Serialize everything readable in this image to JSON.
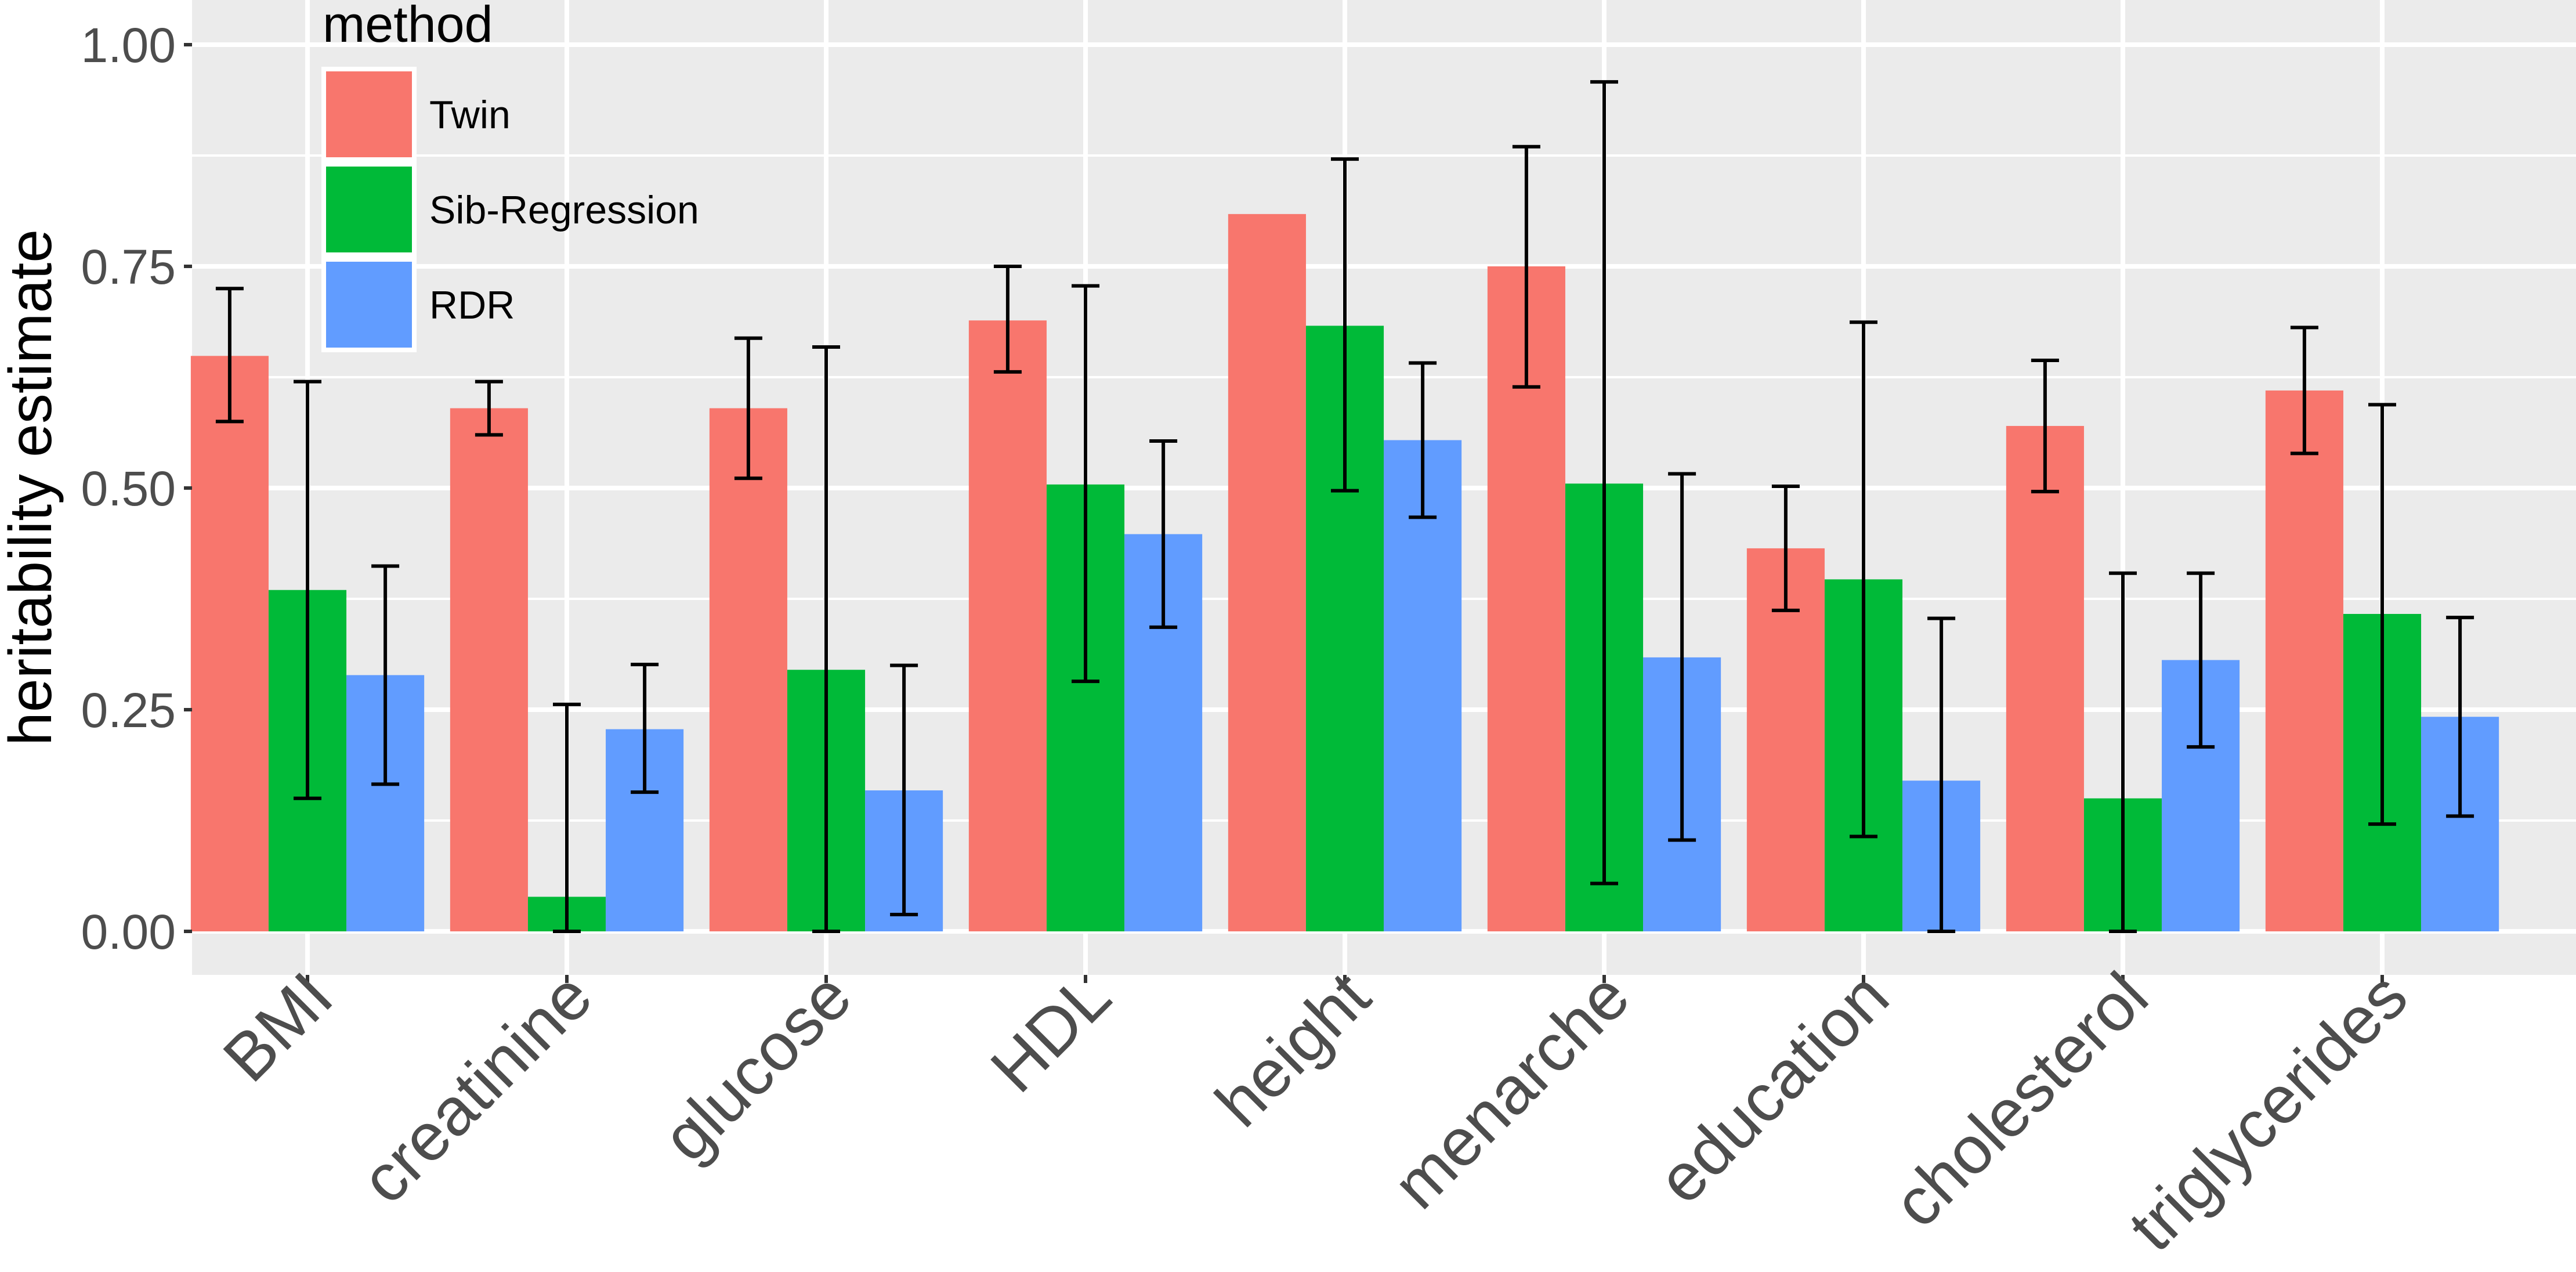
{
  "chart_data": {
    "type": "bar",
    "title": "",
    "xlabel": "",
    "ylabel": "heritability estimate",
    "ylim": [
      -0.05,
      1.04
    ],
    "yticks": [
      "0.00",
      "0.25",
      "0.50",
      "0.75",
      "1.00"
    ],
    "grid": true,
    "legend": {
      "title": "method",
      "placement": "top-left inside"
    },
    "categories": [
      "BMI",
      "creatinine",
      "glucose",
      "HDL",
      "height",
      "menarche",
      "education",
      "cholesterol",
      "triglycerides"
    ],
    "series": [
      {
        "name": "Twin",
        "color": "#F8766D",
        "values": [
          0.649,
          0.59,
          0.59,
          0.689,
          0.809,
          0.75,
          0.432,
          0.57,
          0.61
        ],
        "err_low": [
          0.575,
          0.56,
          0.511,
          0.631,
          null,
          0.614,
          0.362,
          0.496,
          0.539
        ],
        "err_high": [
          0.725,
          0.62,
          0.669,
          0.75,
          null,
          0.885,
          0.502,
          0.644,
          0.681
        ]
      },
      {
        "name": "Sib-Regression",
        "color": "#00BA38",
        "values": [
          0.385,
          0.039,
          0.295,
          0.504,
          0.683,
          0.505,
          0.397,
          0.15,
          0.358
        ],
        "err_low": [
          0.15,
          0.0,
          0.0,
          0.282,
          0.497,
          0.054,
          0.107,
          0.0,
          0.121
        ],
        "err_high": [
          0.62,
          0.256,
          0.659,
          0.728,
          0.871,
          0.958,
          0.687,
          0.404,
          0.594
        ]
      },
      {
        "name": "RDR",
        "color": "#619CFF",
        "values": [
          0.289,
          0.228,
          0.159,
          0.448,
          0.554,
          0.309,
          0.17,
          0.306,
          0.242
        ],
        "err_low": [
          0.166,
          0.157,
          0.019,
          0.343,
          0.467,
          0.103,
          0.0,
          0.208,
          0.13
        ],
        "err_high": [
          0.412,
          0.301,
          0.3,
          0.553,
          0.641,
          0.516,
          0.353,
          0.404,
          0.354
        ]
      }
    ]
  },
  "colors": {
    "panel_background": "#EBEBEB",
    "grid": "#FFFFFF",
    "error_bar": "#000000"
  }
}
